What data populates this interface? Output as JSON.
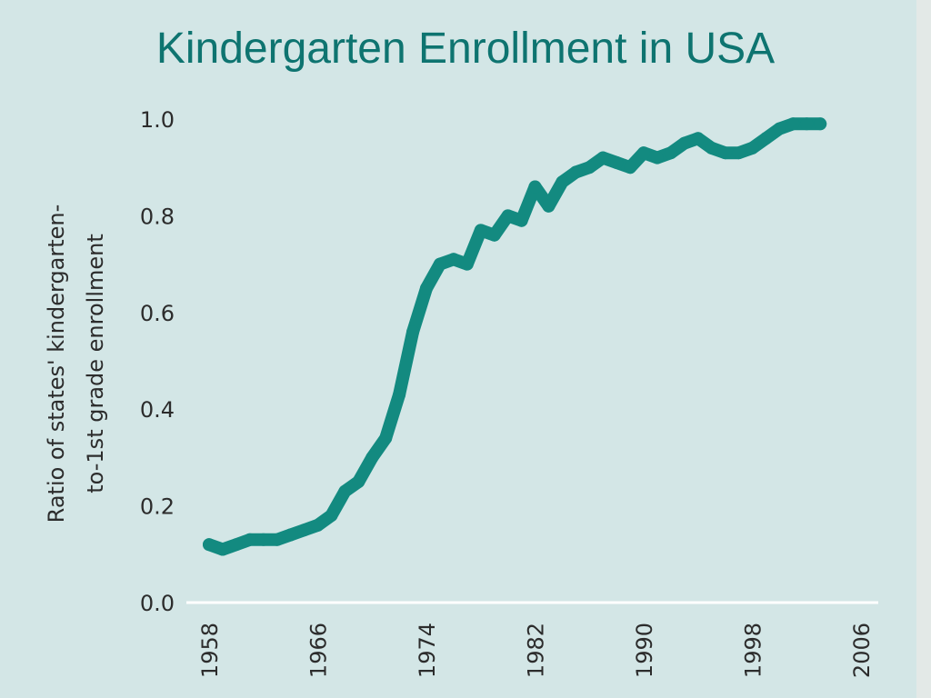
{
  "title": "Kindergarten Enrollment in USA",
  "colors": {
    "background": "#d3e6e6",
    "line": "#138a80",
    "title": "#0e7470",
    "axis": "#ffffff",
    "text": "#2c2c2c"
  },
  "chart_data": {
    "type": "line",
    "title": "Kindergarten Enrollment in USA",
    "xlabel": "",
    "ylabel_lines": [
      "Ratio of states' kindergarten-",
      "to-1st grade enrollment"
    ],
    "xlim": [
      1958,
      2006
    ],
    "ylim": [
      0.0,
      1.0
    ],
    "xticks": [
      "1958",
      "1966",
      "1974",
      "1982",
      "1990",
      "1998",
      "2006"
    ],
    "yticks": [
      "0.0",
      "0.2",
      "0.4",
      "0.6",
      "0.8",
      "1.0"
    ],
    "grid": false,
    "series": [
      {
        "x": [
          1958,
          1959,
          1960,
          1961,
          1962,
          1963,
          1964,
          1965,
          1966,
          1967,
          1968,
          1969,
          1970,
          1971,
          1972,
          1973,
          1974,
          1975,
          1976,
          1977,
          1978,
          1979,
          1980,
          1981,
          1982,
          1983,
          1984,
          1985,
          1986,
          1987,
          1988,
          1989,
          1990,
          1991,
          1992,
          1993,
          1994,
          1995,
          1996,
          1997,
          1998,
          1999,
          2000,
          2001,
          2002,
          2003
        ],
        "y": [
          0.12,
          0.11,
          0.12,
          0.13,
          0.13,
          0.13,
          0.14,
          0.15,
          0.16,
          0.18,
          0.23,
          0.25,
          0.3,
          0.34,
          0.43,
          0.56,
          0.65,
          0.7,
          0.71,
          0.7,
          0.77,
          0.76,
          0.8,
          0.79,
          0.86,
          0.82,
          0.87,
          0.89,
          0.9,
          0.92,
          0.91,
          0.9,
          0.93,
          0.92,
          0.93,
          0.95,
          0.96,
          0.94,
          0.93,
          0.93,
          0.94,
          0.96,
          0.98,
          0.99,
          0.99,
          0.99
        ]
      }
    ]
  }
}
